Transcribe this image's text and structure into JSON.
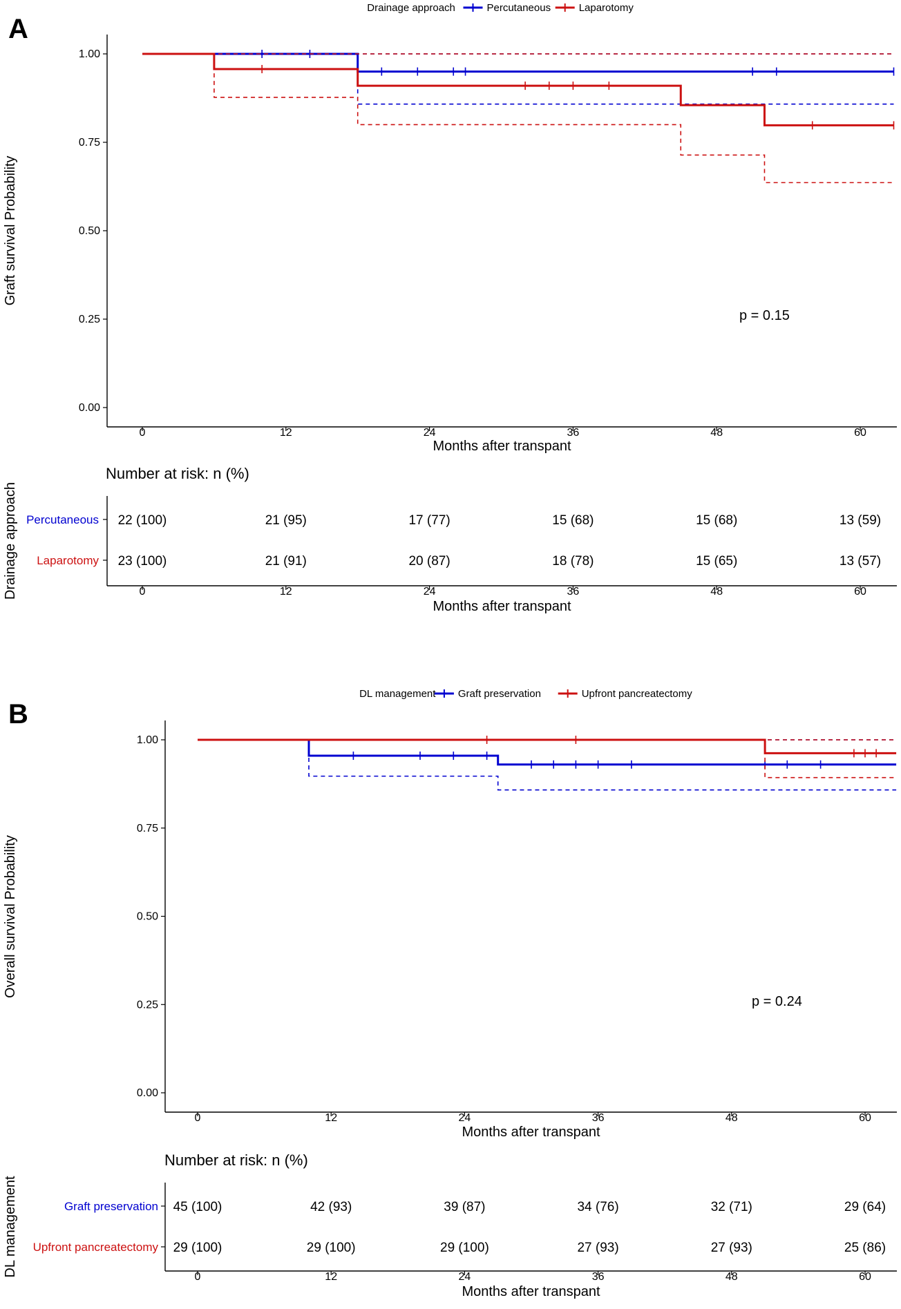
{
  "chart_data": [
    {
      "panel": "A",
      "type": "line",
      "legend_title": "Drainage approach",
      "legend_position": "top",
      "xlabel": "Months after transpant",
      "ylabel": "Graft survival Probability",
      "xlim": [
        0,
        63
      ],
      "ylim": [
        0,
        1.05
      ],
      "x_ticks": [
        "0",
        "12",
        "24",
        "36",
        "48",
        "60"
      ],
      "y_ticks": [
        "0.00",
        "0.25",
        "0.50",
        "0.75",
        "1.00"
      ],
      "p_value": "p = 0.15",
      "series": [
        {
          "name": "Percutaneous",
          "color": "#0000d0",
          "step": {
            "x": [
              0,
              18,
              62.8
            ],
            "y": [
              1.0,
              0.95,
              0.95
            ]
          },
          "ci_upper": {
            "x": [
              0,
              18,
              62.8
            ],
            "y": [
              1.0,
              1.0,
              1.0
            ]
          },
          "ci_lower": {
            "x": [
              0,
              18,
              62.8
            ],
            "y": [
              1.0,
              0.858,
              0.858
            ]
          },
          "censor": [
            {
              "x": 10,
              "y": 1.0
            },
            {
              "x": 14,
              "y": 1.0
            },
            {
              "x": 20,
              "y": 0.95
            },
            {
              "x": 23,
              "y": 0.95
            },
            {
              "x": 26,
              "y": 0.95
            },
            {
              "x": 27,
              "y": 0.95
            },
            {
              "x": 51,
              "y": 0.95
            },
            {
              "x": 53,
              "y": 0.95
            },
            {
              "x": 62.8,
              "y": 0.95
            }
          ]
        },
        {
          "name": "Laparotomy",
          "color": "#cc1111",
          "step": {
            "x": [
              0,
              6,
              18,
              45,
              52,
              62.8
            ],
            "y": [
              1.0,
              0.957,
              0.91,
              0.855,
              0.798,
              0.798
            ]
          },
          "ci_upper": {
            "x": [
              0,
              62.8
            ],
            "y": [
              1.0,
              1.0
            ]
          },
          "ci_lower": {
            "x": [
              0,
              6,
              18,
              45,
              52,
              62.8
            ],
            "y": [
              1.0,
              0.877,
              0.8,
              0.714,
              0.636,
              0.636
            ]
          },
          "censor": [
            {
              "x": 10,
              "y": 0.957
            },
            {
              "x": 32,
              "y": 0.91
            },
            {
              "x": 34,
              "y": 0.91
            },
            {
              "x": 36,
              "y": 0.91
            },
            {
              "x": 39,
              "y": 0.91
            },
            {
              "x": 56,
              "y": 0.798
            },
            {
              "x": 62.8,
              "y": 0.798
            }
          ]
        }
      ],
      "risk_table": {
        "title": "Number at risk: n (%)",
        "ylabel": "Drainage approach",
        "xlabel": "Months after transpant",
        "x": [
          0,
          12,
          24,
          36,
          48,
          60
        ],
        "rows": [
          {
            "name": "Percutaneous",
            "color": "#0000d0",
            "values": [
              "22 (100)",
              "21 (95)",
              "17 (77)",
              "15 (68)",
              "15 (68)",
              "13 (59)"
            ]
          },
          {
            "name": "Laparotomy",
            "color": "#cc1111",
            "values": [
              "23 (100)",
              "21 (91)",
              "20 (87)",
              "18 (78)",
              "15 (65)",
              "13 (57)"
            ]
          }
        ]
      }
    },
    {
      "panel": "B",
      "type": "line",
      "legend_title": "DL management",
      "legend_position": "top",
      "xlabel": "Months after transpant",
      "ylabel": "Overall survival Probability",
      "xlim": [
        0,
        63
      ],
      "ylim": [
        0,
        1.05
      ],
      "x_ticks": [
        "0",
        "12",
        "24",
        "36",
        "48",
        "60"
      ],
      "y_ticks": [
        "0.00",
        "0.25",
        "0.50",
        "0.75",
        "1.00"
      ],
      "p_value": "p = 0.24",
      "series": [
        {
          "name": "Graft preservation",
          "color": "#0000d0",
          "step": {
            "x": [
              0,
              10,
              27,
              62.8
            ],
            "y": [
              1.0,
              0.955,
              0.93,
              0.93
            ]
          },
          "ci_upper": {
            "x": [
              0,
              62.8
            ],
            "y": [
              1.0,
              1.0
            ]
          },
          "ci_lower": {
            "x": [
              0,
              10,
              27,
              62.8
            ],
            "y": [
              1.0,
              0.897,
              0.858,
              0.858
            ]
          },
          "censor": [
            {
              "x": 14,
              "y": 0.955
            },
            {
              "x": 20,
              "y": 0.955
            },
            {
              "x": 23,
              "y": 0.955
            },
            {
              "x": 26,
              "y": 0.955
            },
            {
              "x": 30,
              "y": 0.93
            },
            {
              "x": 32,
              "y": 0.93
            },
            {
              "x": 34,
              "y": 0.93
            },
            {
              "x": 36,
              "y": 0.93
            },
            {
              "x": 39,
              "y": 0.93
            },
            {
              "x": 51,
              "y": 0.93
            },
            {
              "x": 53,
              "y": 0.93
            },
            {
              "x": 56,
              "y": 0.93
            }
          ]
        },
        {
          "name": "Upfront pancreatectomy",
          "color": "#cc1111",
          "step": {
            "x": [
              0,
              51,
              62.8
            ],
            "y": [
              1.0,
              0.962,
              0.962
            ]
          },
          "ci_upper": {
            "x": [
              0,
              62.8
            ],
            "y": [
              1.0,
              1.0
            ]
          },
          "ci_lower": {
            "x": [
              0,
              51,
              62.8
            ],
            "y": [
              1.0,
              0.893,
              0.893
            ]
          },
          "censor": [
            {
              "x": 26,
              "y": 1.0
            },
            {
              "x": 34,
              "y": 1.0
            },
            {
              "x": 59,
              "y": 0.962
            },
            {
              "x": 60,
              "y": 0.962
            },
            {
              "x": 61,
              "y": 0.962
            }
          ]
        }
      ],
      "risk_table": {
        "title": "Number at risk: n (%)",
        "ylabel": "DL management",
        "xlabel": "Months after transpant",
        "x": [
          0,
          12,
          24,
          36,
          48,
          60
        ],
        "rows": [
          {
            "name": "Graft preservation",
            "color": "#0000d0",
            "values": [
              "45 (100)",
              "42 (93)",
              "39 (87)",
              "34 (76)",
              "32 (71)",
              "29 (64)"
            ]
          },
          {
            "name": "Upfront pancreatectomy",
            "color": "#cc1111",
            "values": [
              "29 (100)",
              "29 (100)",
              "29 (100)",
              "27 (93)",
              "27 (93)",
              "25 (86)"
            ]
          }
        ]
      }
    }
  ]
}
